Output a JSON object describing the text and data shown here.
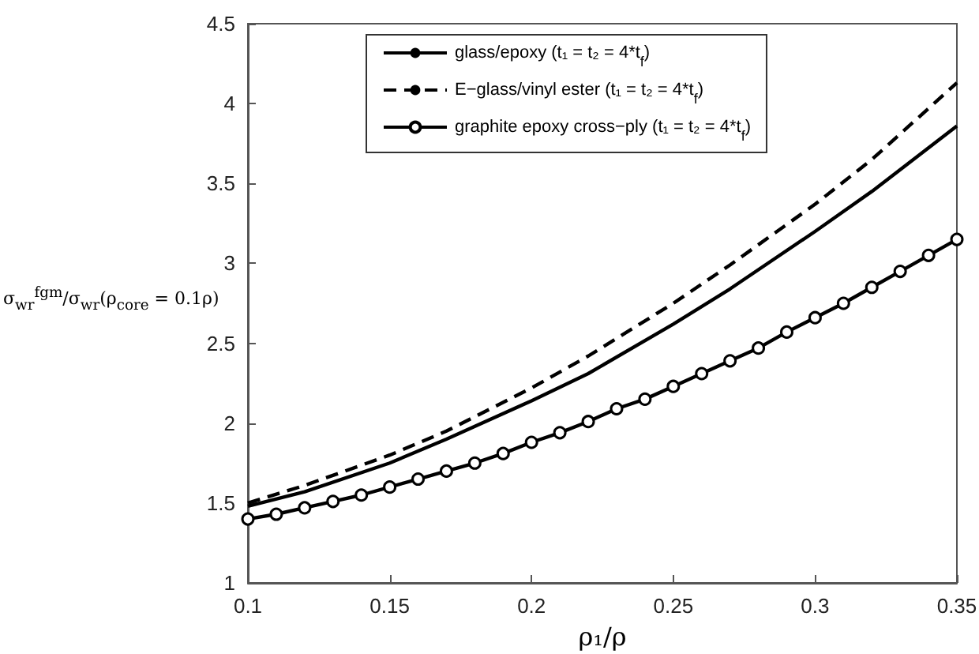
{
  "chart_data": {
    "type": "line",
    "xlabel": "ρ₁/ρ",
    "ylabel": "σ$_{wr}$$^{fgm}$/σ$_{wr}$(ρ$_{core}$ = 0.1ρ)",
    "xlim": [
      0.1,
      0.35
    ],
    "xticks": [
      0.1,
      0.15,
      0.2,
      0.25,
      0.3,
      0.35
    ],
    "ylim": [
      1,
      4.5
    ],
    "yticks": [
      1,
      1.5,
      2,
      2.5,
      3,
      3.5,
      4,
      4.5
    ],
    "grid": false,
    "legend": "top",
    "series": [
      {
        "name": "glass/epoxy (t₁ = t₂ = 4*t$_{f}$)",
        "color": "#000000",
        "line_style": "solid",
        "marker": "none",
        "x": [
          0.1,
          0.12,
          0.15,
          0.17,
          0.2,
          0.22,
          0.25,
          0.27,
          0.3,
          0.32,
          0.35
        ],
        "values": [
          1.48,
          1.57,
          1.75,
          1.9,
          2.14,
          2.31,
          2.62,
          2.84,
          3.2,
          3.45,
          3.86
        ]
      },
      {
        "name": "E−glass/vinyl ester (t₁ = t₂ = 4*t$_{f}$)",
        "color": "#000000",
        "line_style": "dashed",
        "marker": "none",
        "x": [
          0.1,
          0.12,
          0.15,
          0.17,
          0.2,
          0.22,
          0.25,
          0.27,
          0.3,
          0.32,
          0.35
        ],
        "values": [
          1.5,
          1.61,
          1.8,
          1.95,
          2.22,
          2.42,
          2.75,
          2.99,
          3.37,
          3.65,
          4.13
        ]
      },
      {
        "name": "graphite epoxy cross−ply (t₁ = t₂ = 4*t$_{f}$)",
        "color": "#000000",
        "line_style": "solid",
        "marker": "circle",
        "x": [
          0.1,
          0.11,
          0.12,
          0.13,
          0.14,
          0.15,
          0.16,
          0.17,
          0.18,
          0.19,
          0.2,
          0.21,
          0.22,
          0.23,
          0.24,
          0.25,
          0.26,
          0.27,
          0.28,
          0.29,
          0.3,
          0.31,
          0.32,
          0.33,
          0.34,
          0.35
        ],
        "values": [
          1.4,
          1.43,
          1.47,
          1.51,
          1.55,
          1.6,
          1.65,
          1.7,
          1.75,
          1.81,
          1.88,
          1.94,
          2.01,
          2.09,
          2.15,
          2.23,
          2.31,
          2.39,
          2.47,
          2.57,
          2.66,
          2.75,
          2.85,
          2.95,
          3.05,
          3.15
        ]
      }
    ]
  }
}
